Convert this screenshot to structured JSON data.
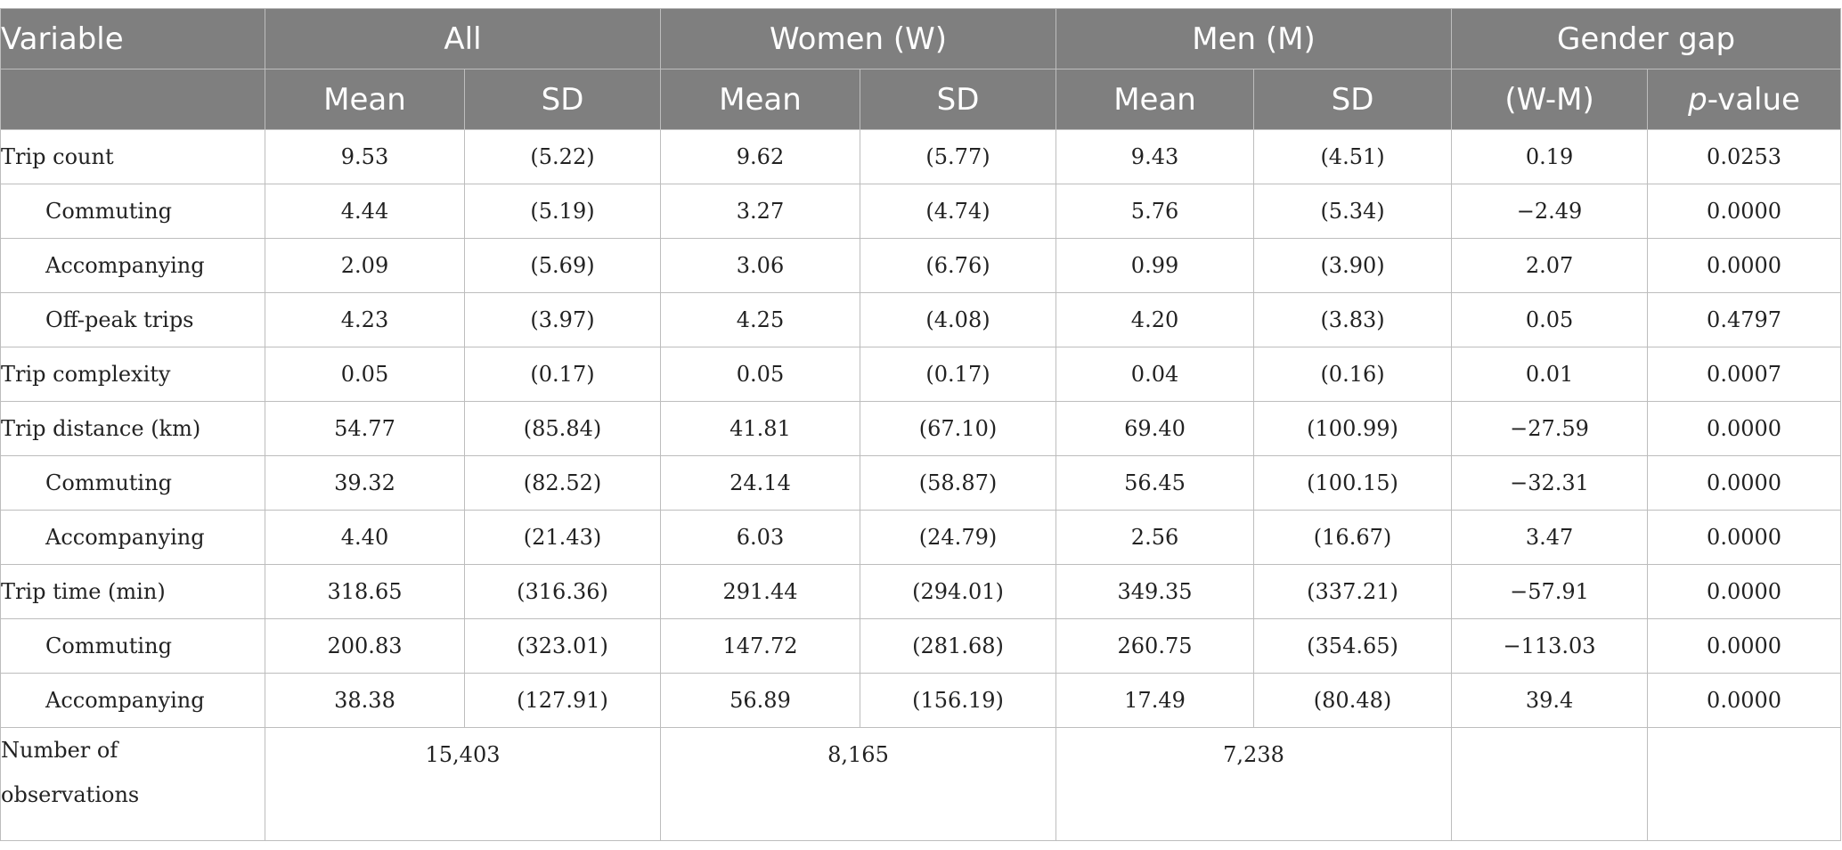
{
  "header": {
    "variable": "Variable",
    "groups": [
      "All",
      "Women (W)",
      "Men (M)",
      "Gender gap"
    ],
    "subheaders": [
      "Mean",
      "SD",
      "Mean",
      "SD",
      "Mean",
      "SD",
      "(W-M)",
      "p",
      "-value"
    ]
  },
  "rows": [
    {
      "label": "Trip count",
      "values": [
        "9.53",
        "(5.22)",
        "9.62",
        "(5.77)",
        "9.43",
        "(4.51)",
        "0.19",
        "0.0253"
      ]
    },
    {
      "label": "Commuting",
      "values": [
        "4.44",
        "(5.19)",
        "3.27",
        "(4.74)",
        "5.76",
        "(5.34)",
        "−2.49",
        "0.0000"
      ]
    },
    {
      "label": "Accompanying",
      "values": [
        "2.09",
        "(5.69)",
        "3.06",
        "(6.76)",
        "0.99",
        "(3.90)",
        "2.07",
        "0.0000"
      ]
    },
    {
      "label": "Off-peak trips",
      "values": [
        "4.23",
        "(3.97)",
        "4.25",
        "(4.08)",
        "4.20",
        "(3.83)",
        "0.05",
        "0.4797"
      ]
    },
    {
      "label": "Trip complexity",
      "values": [
        "0.05",
        "(0.17)",
        "0.05",
        "(0.17)",
        "0.04",
        "(0.16)",
        "0.01",
        "0.0007"
      ]
    },
    {
      "label": "Trip distance (km)",
      "values": [
        "54.77",
        "(85.84)",
        "41.81",
        "(67.10)",
        "69.40",
        "(100.99)",
        "−27.59",
        "0.0000"
      ]
    },
    {
      "label": "Commuting",
      "values": [
        "39.32",
        "(82.52)",
        "24.14",
        "(58.87)",
        "56.45",
        "(100.15)",
        "−32.31",
        "0.0000"
      ]
    },
    {
      "label": "Accompanying",
      "values": [
        "4.40",
        "(21.43)",
        "6.03",
        "(24.79)",
        "2.56",
        "(16.67)",
        "3.47",
        "0.0000"
      ]
    },
    {
      "label": "Trip time (min)",
      "values": [
        "318.65",
        "(316.36)",
        "291.44",
        "(294.01)",
        "349.35",
        "(337.21)",
        "−57.91",
        "0.0000"
      ]
    },
    {
      "label": "Commuting",
      "values": [
        "200.83",
        "(323.01)",
        "147.72",
        "(281.68)",
        "260.75",
        "(354.65)",
        "−113.03",
        "0.0000"
      ]
    },
    {
      "label": "Accompanying",
      "values": [
        "38.38",
        "(127.91)",
        "56.89",
        "(156.19)",
        "17.49",
        "(80.48)",
        "39.4",
        "0.0000"
      ]
    }
  ],
  "observations": {
    "label_line1": "Number of",
    "label_line2": "observations",
    "all": "15,403",
    "women": "8,165",
    "men": "7,238"
  }
}
